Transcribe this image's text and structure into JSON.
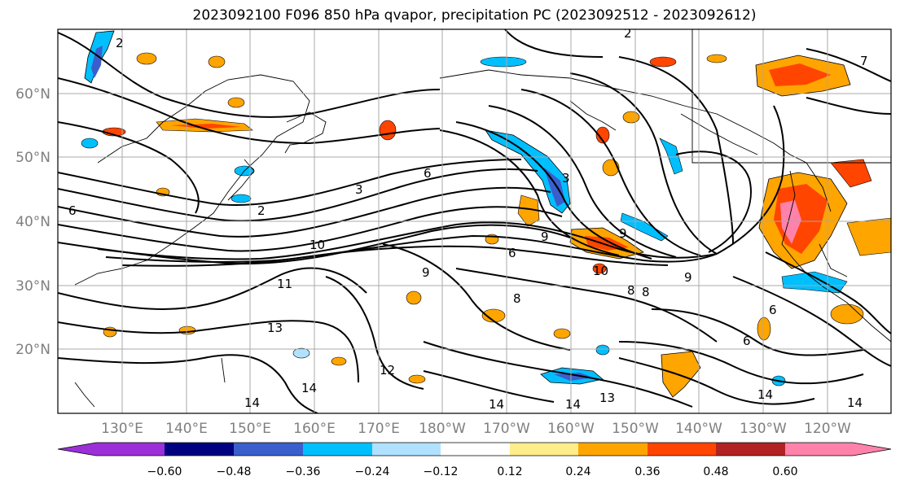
{
  "title": "2023092100 F096 850 hPa qvapor, precipitation PC (2023092512 - 2023092612)",
  "lat_labels": [
    "60°N",
    "50°N",
    "40°N",
    "30°N",
    "20°N"
  ],
  "lon_labels": [
    "130°E",
    "140°E",
    "150°E",
    "160°E",
    "170°E",
    "180°W",
    "170°W",
    "160°W",
    "150°W",
    "140°W",
    "130°W",
    "120°W"
  ],
  "colorbar": {
    "ticks": [
      "−0.60",
      "−0.48",
      "−0.36",
      "−0.24",
      "−0.12",
      "0.12",
      "0.24",
      "0.36",
      "0.48",
      "0.60"
    ],
    "colors": [
      "#9b30d9",
      "#000080",
      "#3a5fcd",
      "#00bfff",
      "#b0e2ff",
      "#ffffff",
      "#ffec8b",
      "#ffa500",
      "#ff4500",
      "#b22222",
      "#ff82ab"
    ]
  },
  "contour_labels": [
    "2",
    "2",
    "3",
    "3",
    "2",
    "6",
    "6",
    "10",
    "11",
    "13",
    "9",
    "9",
    "6",
    "10",
    "8",
    "8",
    "9",
    "12",
    "14",
    "14",
    "14",
    "13",
    "14",
    "6",
    "14",
    "14",
    "8",
    "9",
    "6",
    "7"
  ]
}
